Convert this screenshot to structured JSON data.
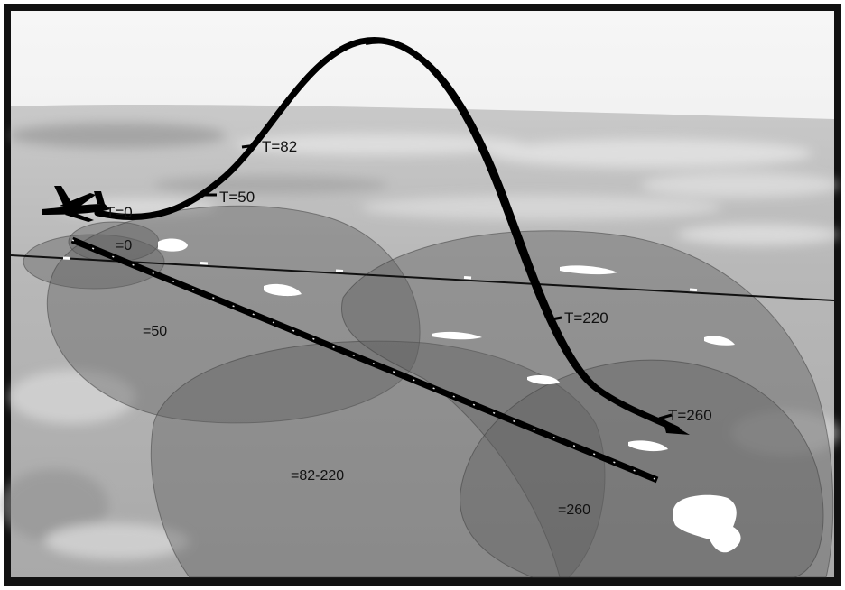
{
  "trajectory_labels": [
    "T=0",
    "T=50",
    "T=82",
    "T=220",
    "T=260"
  ],
  "footprint_labels": [
    "=0",
    "=50",
    "=82-220",
    "=260"
  ],
  "colors": {
    "frame": "#111111",
    "sky_top": "#f4f4f4",
    "ground": "#b9b9b9",
    "footprint_fill": "#6a6a6a",
    "trajectory": "#000000"
  },
  "icons": [
    "airplane-icon"
  ]
}
